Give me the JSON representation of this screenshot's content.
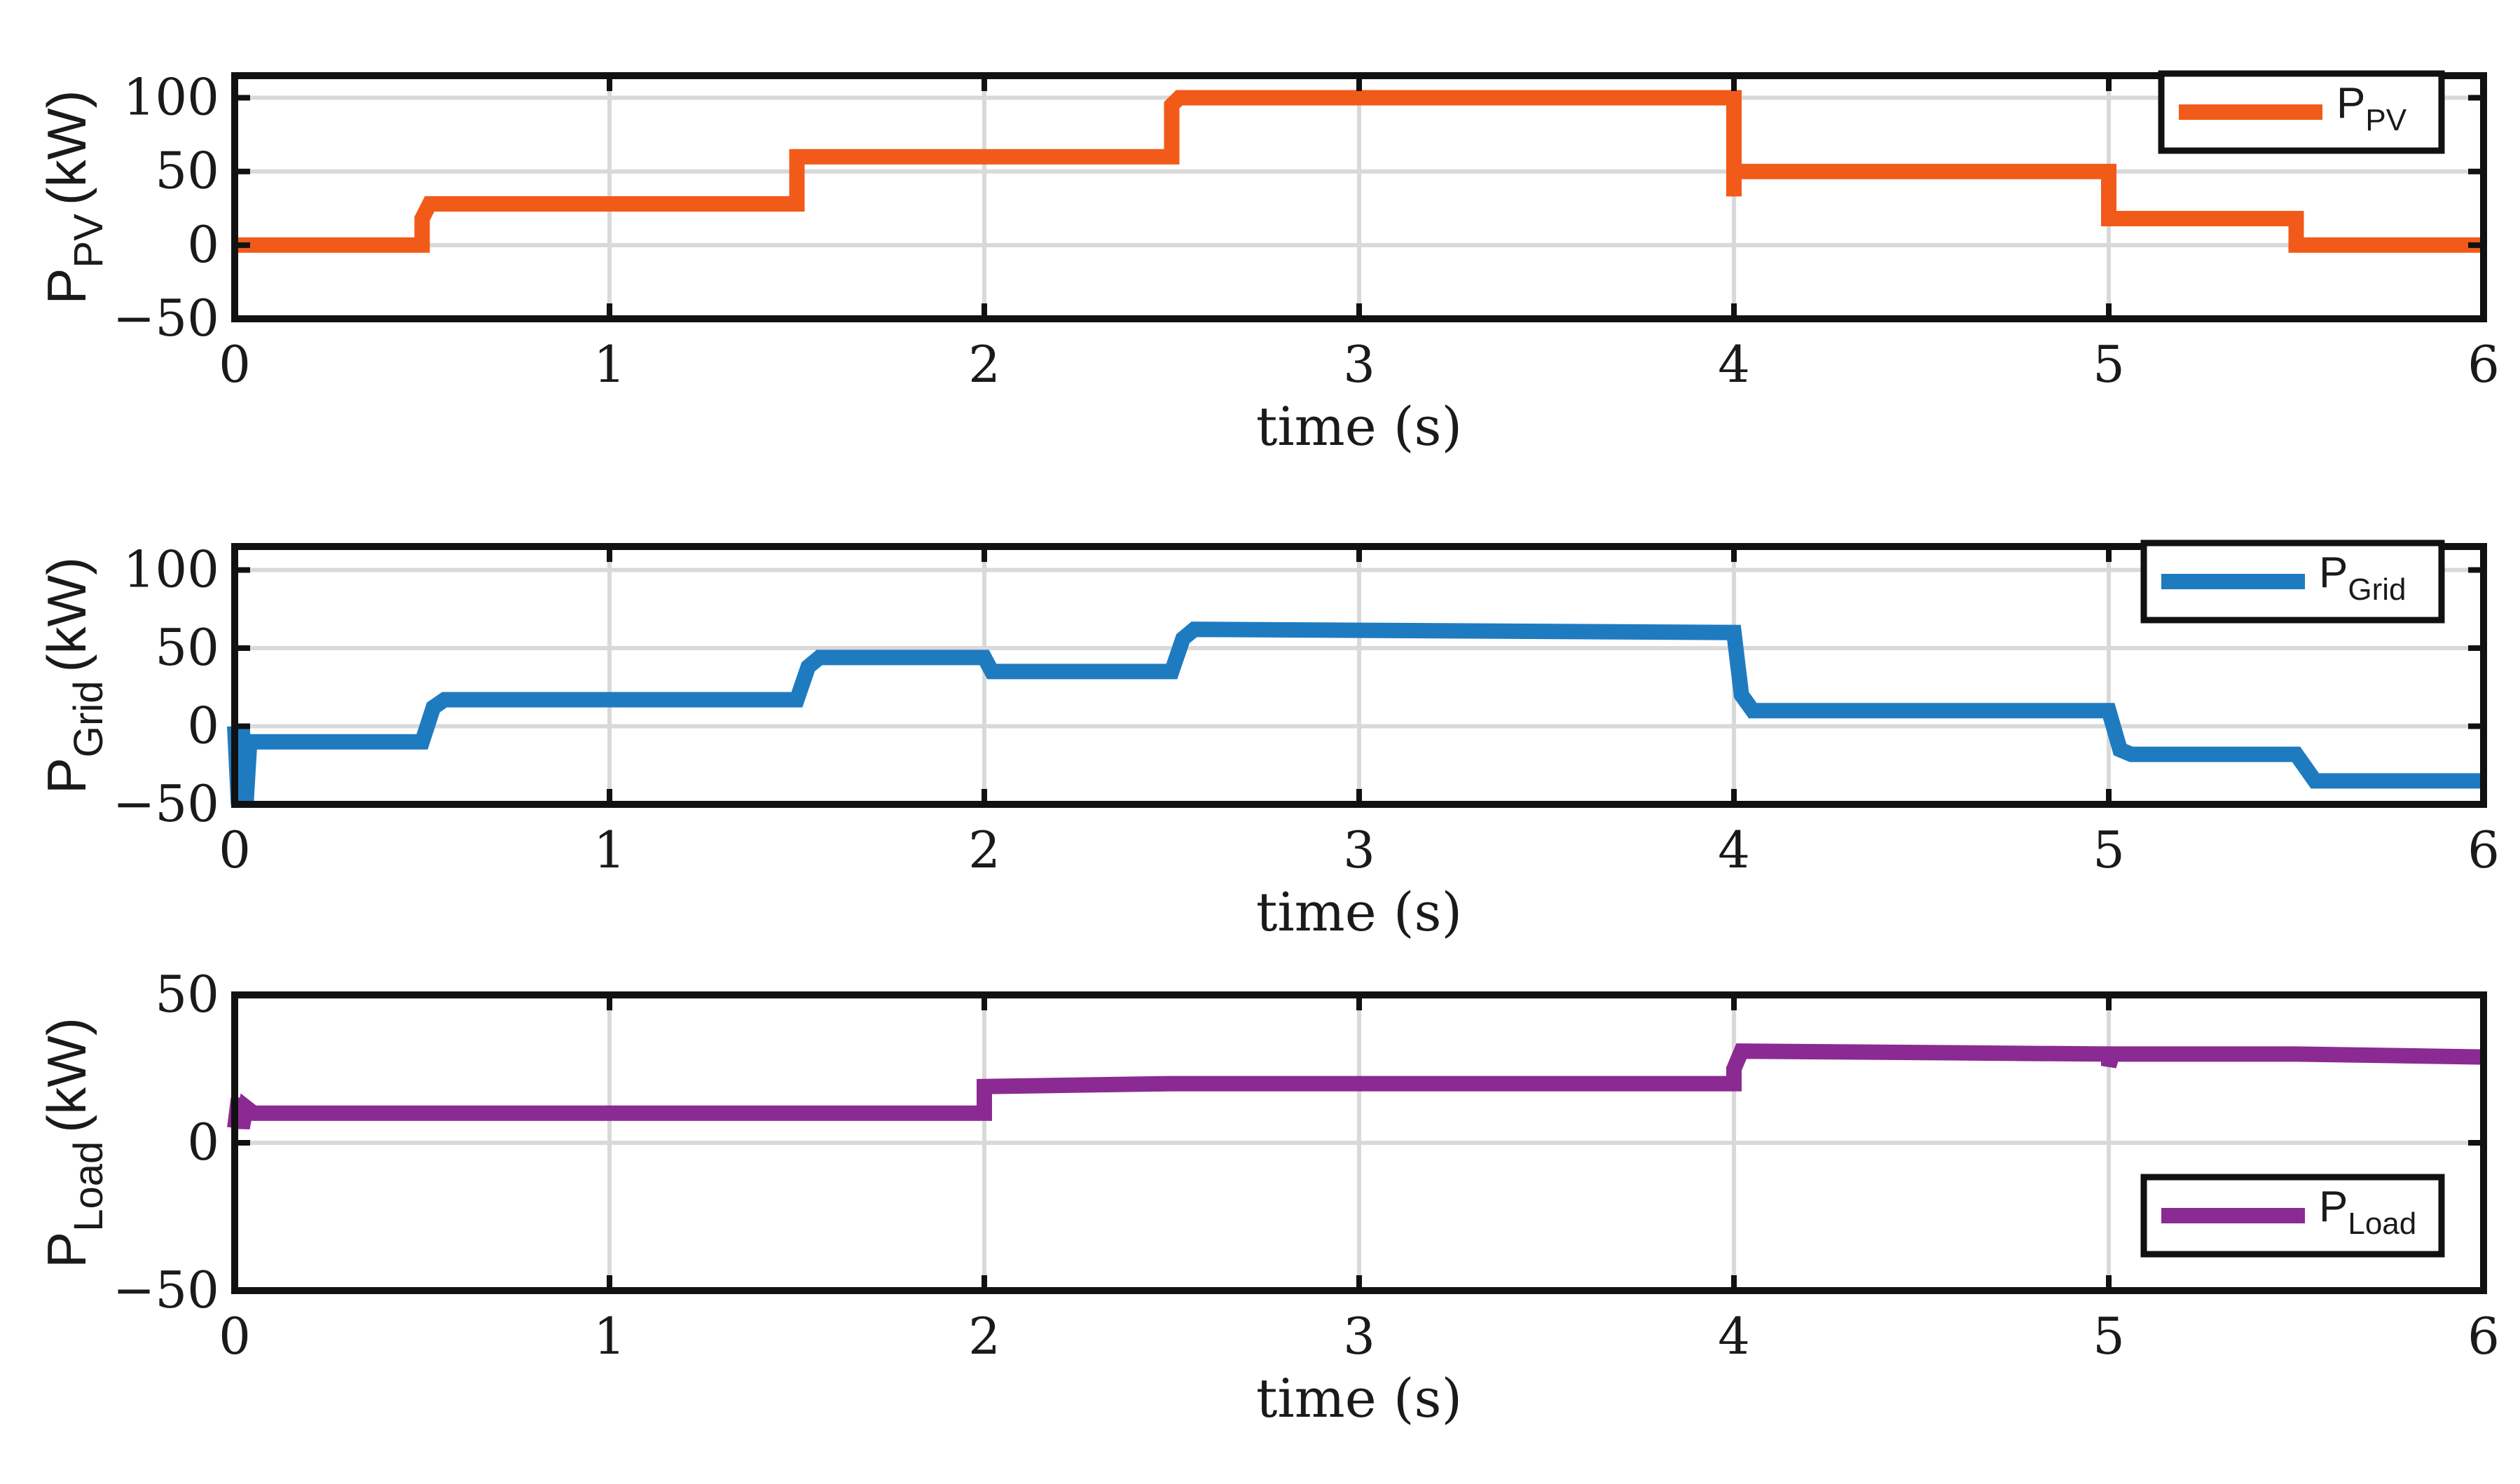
{
  "chart_data": [
    {
      "type": "line",
      "xlabel": "time (s)",
      "ylabel": {
        "main": "P",
        "sub": "PV",
        "unit": "(kW)"
      },
      "xlim": [
        0,
        6
      ],
      "ylim": [
        -50,
        100
      ],
      "xticks": [
        "0",
        "1",
        "2",
        "3",
        "4",
        "5",
        "6"
      ],
      "yticks": [
        "100",
        "50",
        "0",
        "−50"
      ],
      "grid": true,
      "legend_position": "top-right",
      "series": [
        {
          "name": {
            "main": "P",
            "sub": "PV"
          },
          "color": "#F25A19",
          "x": [
            0,
            0.5,
            0.5,
            0.52,
            1.5,
            1.5,
            2.5,
            2.5,
            2.52,
            4.0,
            4.0,
            4.0,
            4.02,
            5.0,
            5.0,
            5.5,
            5.5,
            6.0
          ],
          "y": [
            0,
            0,
            18,
            28,
            28,
            60,
            60,
            95,
            100,
            100,
            33,
            50,
            50,
            50,
            18,
            18,
            0,
            0
          ]
        }
      ]
    },
    {
      "type": "line",
      "xlabel": "time (s)",
      "ylabel": {
        "main": "P",
        "sub": "Grid",
        "unit": "(kW)"
      },
      "xlim": [
        0,
        6
      ],
      "ylim": [
        -50,
        100
      ],
      "xticks": [
        "0",
        "1",
        "2",
        "3",
        "4",
        "5",
        "6"
      ],
      "yticks": [
        "100",
        "50",
        "0",
        "−50"
      ],
      "grid": true,
      "legend_position": "top-right",
      "series": [
        {
          "name": {
            "main": "P",
            "sub": "Grid"
          },
          "color": "#1F7BC0",
          "x": [
            0,
            0.01,
            0.02,
            0.03,
            0.04,
            0.05,
            0.5,
            0.53,
            0.56,
            1.5,
            1.53,
            1.56,
            2.0,
            2.02,
            2.5,
            2.53,
            2.56,
            4.0,
            4.02,
            4.05,
            5.0,
            5.03,
            5.06,
            5.5,
            5.55,
            5.6,
            6.0
          ],
          "y": [
            0,
            -50,
            0,
            -50,
            -10,
            -10,
            -10,
            12,
            17,
            17,
            38,
            44,
            44,
            35,
            35,
            56,
            62,
            60,
            20,
            10,
            10,
            -15,
            -18,
            -18,
            -35,
            -35,
            -35
          ]
        }
      ]
    },
    {
      "type": "line",
      "xlabel": "time (s)",
      "ylabel": {
        "main": "P",
        "sub": "Load",
        "unit": "(kW)"
      },
      "xlim": [
        0,
        6
      ],
      "ylim": [
        -50,
        50
      ],
      "xticks": [
        "0",
        "1",
        "2",
        "3",
        "4",
        "5",
        "6"
      ],
      "yticks": [
        "50",
        "0",
        "−50"
      ],
      "grid": true,
      "legend_position": "bottom-right",
      "series": [
        {
          "name": {
            "main": "P",
            "sub": "Load"
          },
          "color": "#8B2A92",
          "x": [
            0,
            0.01,
            0.02,
            0.03,
            0.05,
            2.0,
            2.0,
            2.5,
            4.0,
            4.0,
            4.02,
            5.0,
            5.0,
            5.01,
            5.5,
            6.0
          ],
          "y": [
            5,
            15,
            5,
            12,
            10,
            10,
            19,
            20,
            20,
            25,
            31,
            30,
            26,
            30,
            30,
            29
          ]
        }
      ]
    }
  ]
}
